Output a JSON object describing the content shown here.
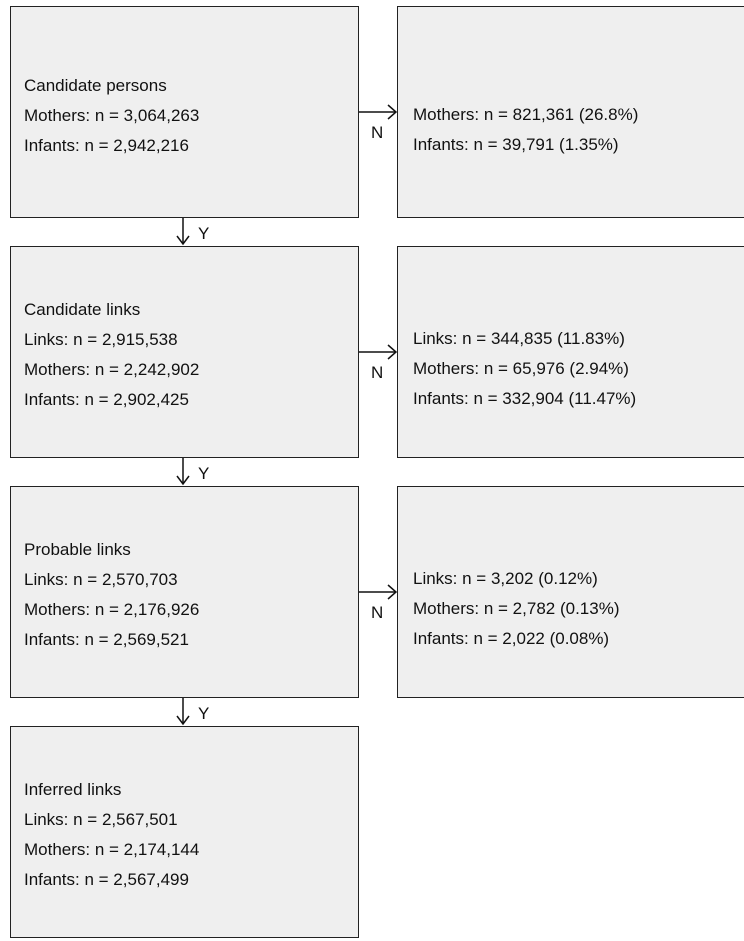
{
  "left_boxes": [
    {
      "title": "Candidate persons",
      "lines": [
        "Mothers: n = 3,064,263",
        "Infants: n = 2,942,216"
      ]
    },
    {
      "title": "Candidate links",
      "lines": [
        "Links: n = 2,915,538",
        "Mothers: n = 2,242,902",
        "Infants: n = 2,902,425"
      ]
    },
    {
      "title": "Probable links",
      "lines": [
        "Links: n = 2,570,703",
        "Mothers: n = 2,176,926",
        "Infants: n = 2,569,521"
      ]
    },
    {
      "title": "Inferred links",
      "lines": [
        "Links: n = 2,567,501",
        "Mothers: n = 2,174,144",
        "Infants: n = 2,567,499"
      ]
    }
  ],
  "right_boxes": [
    {
      "lines": [
        "Mothers: n = 821,361 (26.8%)",
        "Infants: n = 39,791 (1.35%)"
      ]
    },
    {
      "lines": [
        "Links: n = 344,835 (11.83%)",
        "Mothers: n = 65,976 (2.94%)",
        "Infants: n = 332,904 (11.47%)"
      ]
    },
    {
      "lines": [
        "Links: n = 3,202 (0.12%)",
        "Mothers: n = 2,782 (0.13%)",
        "Infants: n = 2,022 (0.08%)"
      ]
    }
  ],
  "edge_labels": {
    "yes": "Y",
    "no": "N"
  }
}
